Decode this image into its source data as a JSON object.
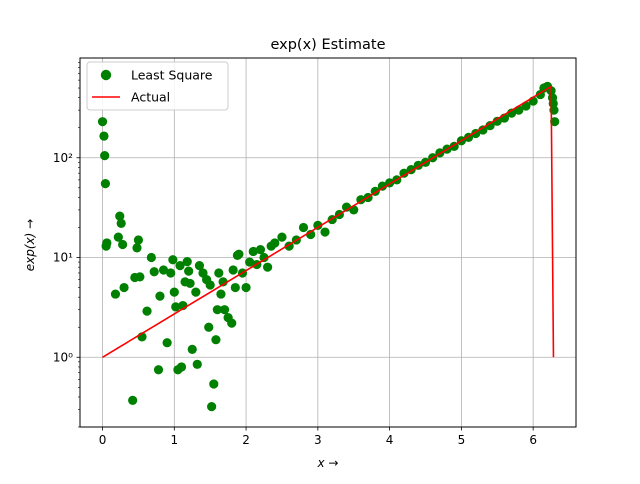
{
  "chart_data": {
    "type": "scatter",
    "title": "exp(x) Estimate",
    "xlabel": "x →",
    "ylabel": "exp(x) →",
    "xscale": "linear",
    "yscale": "log",
    "xlim": [
      -0.314,
      6.597
    ],
    "ylim": [
      0.2,
      1000
    ],
    "grid": true,
    "legend_position": "top-left",
    "x_ticks": [
      0,
      1,
      2,
      3,
      4,
      5,
      6
    ],
    "x_tick_labels": [
      "0",
      "1",
      "2",
      "3",
      "4",
      "5",
      "6"
    ],
    "y_ticks": [
      1,
      10,
      100
    ],
    "y_tick_labels": [
      "10⁰",
      "10¹",
      "10²"
    ],
    "series": [
      {
        "name": "Least Square",
        "kind": "scatter",
        "color": "#008000",
        "x": [
          0.0,
          0.02,
          0.03,
          0.04,
          0.05,
          0.06,
          0.18,
          0.22,
          0.24,
          0.26,
          0.28,
          0.3,
          0.42,
          0.45,
          0.48,
          0.5,
          0.52,
          0.55,
          0.62,
          0.68,
          0.72,
          0.78,
          0.8,
          0.85,
          0.9,
          0.95,
          0.98,
          1.0,
          1.02,
          1.05,
          1.08,
          1.1,
          1.12,
          1.15,
          1.18,
          1.2,
          1.22,
          1.25,
          1.3,
          1.32,
          1.35,
          1.4,
          1.45,
          1.48,
          1.5,
          1.52,
          1.55,
          1.58,
          1.6,
          1.62,
          1.65,
          1.68,
          1.7,
          1.75,
          1.8,
          1.82,
          1.85,
          1.88,
          1.9,
          1.95,
          2.0,
          2.05,
          2.1,
          2.15,
          2.2,
          2.25,
          2.3,
          2.35,
          2.4,
          2.5,
          2.6,
          2.7,
          2.8,
          2.9,
          3.0,
          3.1,
          3.2,
          3.3,
          3.4,
          3.5,
          3.6,
          3.7,
          3.8,
          3.9,
          4.0,
          4.1,
          4.2,
          4.3,
          4.4,
          4.5,
          4.6,
          4.7,
          4.8,
          4.9,
          5.0,
          5.1,
          5.2,
          5.3,
          5.4,
          5.5,
          5.6,
          5.7,
          5.8,
          5.9,
          6.0,
          6.1,
          6.15,
          6.2,
          6.25,
          6.27,
          6.28,
          6.29,
          6.3
        ],
        "y": [
          230,
          165,
          105,
          55,
          13,
          14,
          4.3,
          16,
          26,
          22,
          13.5,
          5,
          0.37,
          6.3,
          12.5,
          15,
          6.4,
          1.6,
          2.9,
          10,
          7.2,
          0.75,
          4.1,
          7.5,
          1.4,
          7,
          9.5,
          4.5,
          3.2,
          0.75,
          8.3,
          0.8,
          3.3,
          5.7,
          9.1,
          7.3,
          5.5,
          1.2,
          4.5,
          0.85,
          8.3,
          7,
          6,
          2,
          5.3,
          0.32,
          0.54,
          1.5,
          3,
          7,
          4.3,
          5.7,
          3,
          2.5,
          2.2,
          7.5,
          5,
          10.5,
          10.8,
          7,
          5,
          9,
          11.5,
          8.5,
          12,
          10,
          8,
          13,
          14,
          16,
          13,
          15,
          20,
          17,
          21,
          18,
          24,
          27,
          32,
          30,
          38,
          40,
          46,
          52,
          56,
          60,
          70,
          76,
          84,
          90,
          100,
          112,
          122,
          130,
          148,
          160,
          175,
          190,
          210,
          232,
          250,
          280,
          300,
          330,
          370,
          430,
          500,
          520,
          470,
          400,
          350,
          300,
          230
        ]
      },
      {
        "name": "Actual",
        "kind": "line",
        "color": "#ff0000",
        "x": [
          0.0,
          0.25,
          0.5,
          0.75,
          1.0,
          1.25,
          1.5,
          1.75,
          2.0,
          2.25,
          2.5,
          2.75,
          3.0,
          3.25,
          3.5,
          3.75,
          4.0,
          4.25,
          4.5,
          4.75,
          5.0,
          5.25,
          5.5,
          5.75,
          6.0,
          6.25,
          6.283
        ],
        "y": [
          1.0,
          1.284,
          1.649,
          2.117,
          2.718,
          3.49,
          4.482,
          5.755,
          7.389,
          9.488,
          12.18,
          15.64,
          20.09,
          25.79,
          33.12,
          42.52,
          54.6,
          70.11,
          90.02,
          115.6,
          148.4,
          190.6,
          244.7,
          314.2,
          403.4,
          518.0,
          1.0
        ]
      }
    ]
  }
}
